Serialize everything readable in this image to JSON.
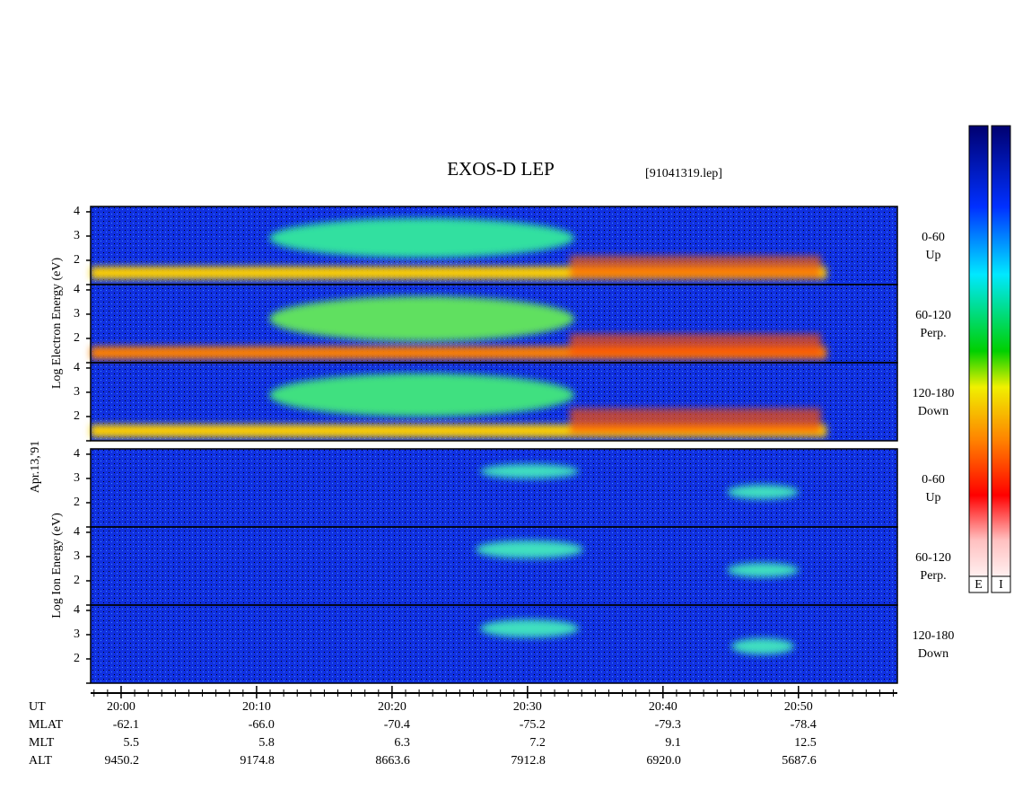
{
  "title": "EXOS-D LEP",
  "file": "[91041319.lep]",
  "date": "Apr.13,'91",
  "electron_label": "Log Electron Energy (eV)",
  "ion_label": "Log Ion Energy (eV)",
  "panels": [
    {
      "angle": "0-60",
      "dir": "Up"
    },
    {
      "angle": "60-120",
      "dir": "Perp."
    },
    {
      "angle": "120-180",
      "dir": "Down"
    },
    {
      "angle": "0-60",
      "dir": "Up"
    },
    {
      "angle": "60-120",
      "dir": "Perp."
    },
    {
      "angle": "120-180",
      "dir": "Down"
    }
  ],
  "energy_axis": {
    "ylim": [
      1,
      4.22
    ],
    "yticks": [
      2,
      3,
      4
    ]
  },
  "time_axis": {
    "xlim": [
      -2.25,
      57.3
    ],
    "xticks": [
      {
        "value": 0,
        "label": "20:00"
      },
      {
        "value": 10,
        "label": "20:10"
      },
      {
        "value": 20,
        "label": "20:20"
      },
      {
        "value": 30,
        "label": "20:30"
      },
      {
        "value": 40,
        "label": "20:40"
      },
      {
        "value": 50,
        "label": "20:50"
      }
    ],
    "minor_xticks": [
      -2,
      -1,
      0,
      1,
      2,
      3,
      4,
      5,
      6,
      7,
      8,
      9,
      10,
      11,
      12,
      13,
      14,
      15,
      16,
      17,
      18,
      19,
      20,
      21,
      22,
      23,
      24,
      25,
      26,
      27,
      28,
      29,
      30,
      31,
      32,
      33,
      34,
      35,
      36,
      37,
      38,
      39,
      40,
      41,
      42,
      43,
      44,
      45,
      46,
      47,
      48,
      49,
      50,
      51,
      52,
      53,
      54,
      55,
      56,
      57
    ]
  },
  "ephemeris": {
    "time_name": "UT",
    "rows": [
      {
        "name": "MLAT",
        "values": [
          "-62.1",
          "-66.0",
          "-70.4",
          "-75.2",
          "-79.3",
          "-78.4"
        ]
      },
      {
        "name": "MLT",
        "values": [
          "5.5",
          "5.8",
          "6.3",
          "7.2",
          "9.1",
          "12.5"
        ]
      },
      {
        "name": "ALT",
        "values": [
          "9450.2",
          "9174.8",
          "8663.6",
          "7912.8",
          "6920.0",
          "5687.6"
        ]
      }
    ]
  },
  "colorbars": [
    "E",
    "I"
  ]
}
